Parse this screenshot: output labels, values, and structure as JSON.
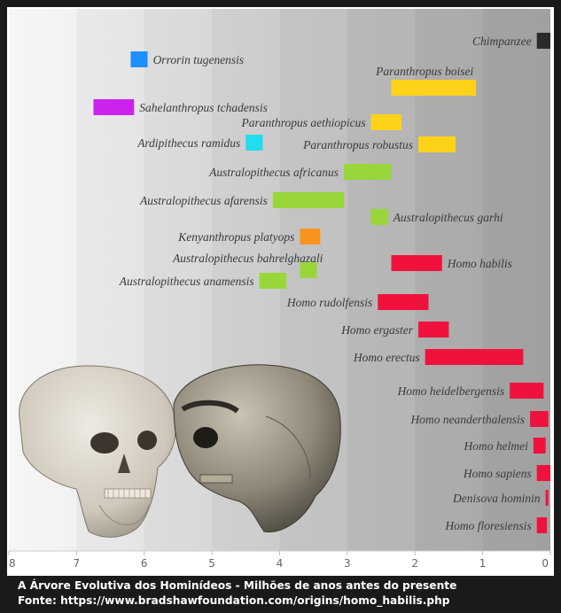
{
  "caption": {
    "line1": "A Árvore Evolutiva dos Hominídeos - Milhões de anos antes do presente",
    "line2": "Fonte: https://www.bradshawfoundation.com/origins/homo_habilis.php"
  },
  "colors": {
    "blue": "#1e90ff",
    "magenta": "#cc22ee",
    "cyan": "#22ddee",
    "yellow": "#ffd21a",
    "green": "#99d63a",
    "orange": "#f7941d",
    "red": "#f0123c",
    "black": "#2a2a2a"
  },
  "chart_data": {
    "type": "bar",
    "orientation": "horizontal-range",
    "x_ticks": [
      "8",
      "7",
      "6",
      "5",
      "4",
      "3",
      "2",
      "1",
      "0"
    ],
    "xlim": [
      8,
      0
    ],
    "series": [
      {
        "label": "Chimpanzee",
        "start": 0.2,
        "end": 0.0,
        "color": "black",
        "label_side": "left"
      },
      {
        "label": "Orrorin tugenensis",
        "start": 6.2,
        "end": 5.95,
        "color": "blue",
        "label_side": "right"
      },
      {
        "label": "Paranthropus boisei",
        "start": 2.35,
        "end": 1.1,
        "color": "yellow",
        "label_side": "above"
      },
      {
        "label": "Sahelanthropus tchadensis",
        "start": 6.75,
        "end": 6.15,
        "color": "magenta",
        "label_side": "right"
      },
      {
        "label": "Paranthropus aethiopicus",
        "start": 2.65,
        "end": 2.2,
        "color": "yellow",
        "label_side": "left"
      },
      {
        "label": "Ardipithecus ramidus",
        "start": 4.5,
        "end": 4.25,
        "color": "cyan",
        "label_side": "left"
      },
      {
        "label": "Paranthropus robustus",
        "start": 1.95,
        "end": 1.4,
        "color": "yellow",
        "label_side": "left"
      },
      {
        "label": "Australopithecus africanus",
        "start": 3.05,
        "end": 2.35,
        "color": "green",
        "label_side": "left"
      },
      {
        "label": "Australopithecus afarensis",
        "start": 4.1,
        "end": 3.05,
        "color": "green",
        "label_side": "left"
      },
      {
        "label": "Australopithecus garhi",
        "start": 2.65,
        "end": 2.4,
        "color": "green",
        "label_side": "right"
      },
      {
        "label": "Kenyanthropus platyops",
        "start": 3.7,
        "end": 3.4,
        "color": "orange",
        "label_side": "left"
      },
      {
        "label": "Homo habilis",
        "start": 2.35,
        "end": 1.6,
        "color": "red",
        "label_side": "right"
      },
      {
        "label": "Australopithecus bahrelghazali",
        "start": 3.7,
        "end": 3.45,
        "color": "green",
        "label_side": "left-above"
      },
      {
        "label": "Australopithecus anamensis",
        "start": 4.3,
        "end": 3.9,
        "color": "green",
        "label_side": "left"
      },
      {
        "label": "Homo rudolfensis",
        "start": 2.55,
        "end": 1.8,
        "color": "red",
        "label_side": "left"
      },
      {
        "label": "Homo ergaster",
        "start": 1.95,
        "end": 1.5,
        "color": "red",
        "label_side": "left"
      },
      {
        "label": "Homo erectus",
        "start": 1.85,
        "end": 0.4,
        "color": "red",
        "label_side": "left"
      },
      {
        "label": "Homo heidelbergensis",
        "start": 0.6,
        "end": 0.1,
        "color": "red",
        "label_side": "left"
      },
      {
        "label": "Homo neanderthalensis",
        "start": 0.3,
        "end": 0.03,
        "color": "red",
        "label_side": "left"
      },
      {
        "label": "Homo helmei",
        "start": 0.25,
        "end": 0.07,
        "color": "red",
        "label_side": "left"
      },
      {
        "label": "Homo sapiens",
        "start": 0.2,
        "end": 0.0,
        "color": "red",
        "label_side": "left"
      },
      {
        "label": "Denisova hominin",
        "start": 0.07,
        "end": 0.03,
        "color": "red",
        "label_side": "left"
      },
      {
        "label": "Homo floresiensis",
        "start": 0.2,
        "end": 0.05,
        "color": "red",
        "label_side": "left"
      }
    ]
  }
}
